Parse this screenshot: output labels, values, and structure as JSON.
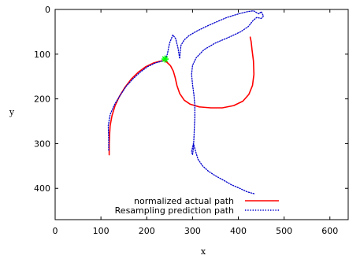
{
  "chart_data": {
    "type": "line",
    "title": "",
    "xlabel": "x",
    "ylabel": "y",
    "xlim": [
      0,
      640
    ],
    "ylim": [
      0,
      470
    ],
    "y_inverted": true,
    "grid": false,
    "legend_position": "bottom-center",
    "x_ticks": [
      0,
      100,
      200,
      300,
      400,
      500,
      600
    ],
    "y_ticks": [
      0,
      100,
      200,
      300,
      400
    ],
    "x_tick_labels": [
      "0",
      "100",
      "200",
      "300",
      "400",
      "500",
      "600"
    ],
    "y_tick_labels": [
      "0",
      "100",
      "200",
      "300",
      "400"
    ],
    "series": [
      {
        "name": "normalized actual path",
        "color": "#ff0000",
        "style": "solid",
        "points": [
          [
            118,
            325
          ],
          [
            118,
            300
          ],
          [
            119,
            278
          ],
          [
            120,
            260
          ],
          [
            124,
            238
          ],
          [
            131,
            215
          ],
          [
            140,
            195
          ],
          [
            152,
            175
          ],
          [
            166,
            156
          ],
          [
            182,
            140
          ],
          [
            198,
            128
          ],
          [
            214,
            120
          ],
          [
            228,
            116
          ],
          [
            238,
            114
          ],
          [
            244,
            118
          ],
          [
            252,
            126
          ],
          [
            258,
            138
          ],
          [
            262,
            152
          ],
          [
            266,
            170
          ],
          [
            272,
            188
          ],
          [
            282,
            203
          ],
          [
            295,
            212
          ],
          [
            315,
            218
          ],
          [
            340,
            220
          ],
          [
            365,
            220
          ],
          [
            390,
            215
          ],
          [
            410,
            205
          ],
          [
            423,
            190
          ],
          [
            431,
            170
          ],
          [
            434,
            145
          ],
          [
            433,
            115
          ],
          [
            430,
            90
          ],
          [
            428,
            72
          ],
          [
            426,
            62
          ]
        ]
      },
      {
        "name": "Resampling prediction path",
        "color": "#0000cc",
        "style": "dotted",
        "points": [
          [
            117,
            315
          ],
          [
            117,
            290
          ],
          [
            116,
            260
          ],
          [
            120,
            235
          ],
          [
            130,
            212
          ],
          [
            142,
            192
          ],
          [
            155,
            172
          ],
          [
            170,
            155
          ],
          [
            186,
            140
          ],
          [
            202,
            128
          ],
          [
            218,
            120
          ],
          [
            232,
            116
          ],
          [
            240,
            113
          ],
          [
            245,
            100
          ],
          [
            250,
            75
          ],
          [
            257,
            57
          ],
          [
            263,
            65
          ],
          [
            268,
            85
          ],
          [
            272,
            110
          ],
          [
            273,
            95
          ],
          [
            275,
            80
          ],
          [
            282,
            68
          ],
          [
            293,
            58
          ],
          [
            310,
            48
          ],
          [
            330,
            38
          ],
          [
            352,
            28
          ],
          [
            375,
            18
          ],
          [
            400,
            10
          ],
          [
            420,
            5
          ],
          [
            433,
            3
          ],
          [
            445,
            10
          ],
          [
            450,
            5
          ],
          [
            455,
            15
          ],
          [
            450,
            20
          ],
          [
            440,
            18
          ],
          [
            432,
            25
          ],
          [
            422,
            38
          ],
          [
            405,
            50
          ],
          [
            380,
            62
          ],
          [
            350,
            75
          ],
          [
            325,
            90
          ],
          [
            308,
            108
          ],
          [
            300,
            125
          ],
          [
            298,
            145
          ],
          [
            300,
            168
          ],
          [
            303,
            190
          ],
          [
            305,
            215
          ],
          [
            305,
            240
          ],
          [
            304,
            265
          ],
          [
            303,
            290
          ],
          [
            302,
            310
          ],
          [
            300,
            325
          ],
          [
            298,
            318
          ],
          [
            302,
            300
          ],
          [
            306,
            315
          ],
          [
            312,
            335
          ],
          [
            322,
            350
          ],
          [
            335,
            362
          ],
          [
            350,
            372
          ],
          [
            368,
            382
          ],
          [
            385,
            392
          ],
          [
            403,
            400
          ],
          [
            420,
            408
          ],
          [
            435,
            412
          ]
        ]
      }
    ],
    "marker": {
      "x": 240,
      "y": 111,
      "color": "#00ff00",
      "shape": "star"
    }
  }
}
